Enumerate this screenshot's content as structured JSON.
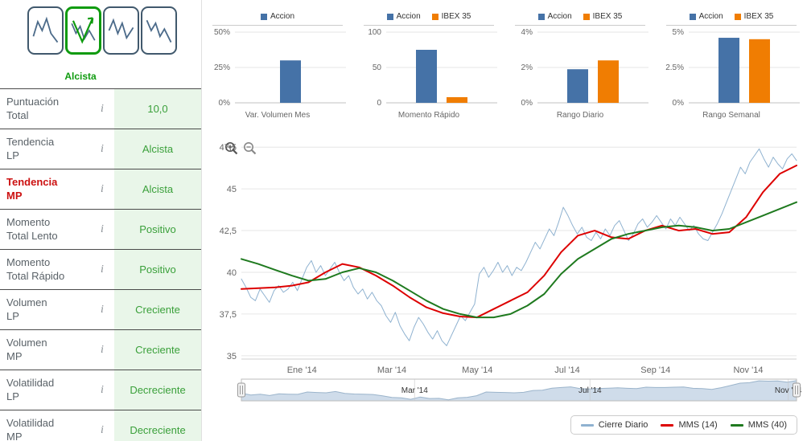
{
  "colors": {
    "accion": "#4572a7",
    "ibex": "#f07d02",
    "price": "#8fb2d0",
    "mms14": "#dd0000",
    "mms40": "#1f7a1f",
    "positive_text": "#3aa03a",
    "positive_bg": "#e9f6e9",
    "alert_red": "#cc1111",
    "grid": "#e6e6e6",
    "nav_fill": "#cfdcea",
    "nav_line": "#9bb4cb"
  },
  "icons": {
    "info": "italic-i",
    "zoom_in": "magnifier-plus",
    "zoom_out": "magnifier-minus",
    "pattern_thumbnails": [
      "sparkline-trend-1",
      "sparkline-bullish-arrow",
      "sparkline-trend-3",
      "sparkline-trend-4"
    ]
  },
  "sidebar": {
    "selected_pattern_label": "Alcista",
    "info_glyph": "i",
    "rows": [
      {
        "lines": [
          "Puntuación",
          "Total"
        ],
        "value": "10,0",
        "alert": false
      },
      {
        "lines": [
          "Tendencia",
          "LP"
        ],
        "value": "Alcista",
        "alert": false
      },
      {
        "lines": [
          "Tendencia",
          "MP"
        ],
        "value": "Alcista",
        "alert": true
      },
      {
        "lines": [
          "Momento",
          "Total Lento"
        ],
        "value": "Positivo",
        "alert": false
      },
      {
        "lines": [
          "Momento",
          "Total Rápido"
        ],
        "value": "Positivo",
        "alert": false
      },
      {
        "lines": [
          "Volumen",
          "LP"
        ],
        "value": "Creciente",
        "alert": false
      },
      {
        "lines": [
          "Volumen",
          "MP"
        ],
        "value": "Creciente",
        "alert": false
      },
      {
        "lines": [
          "Volatilidad",
          "LP"
        ],
        "value": "Decreciente",
        "alert": false
      },
      {
        "lines": [
          "Volatilidad",
          "MP"
        ],
        "value": "Decreciente",
        "alert": false
      }
    ]
  },
  "legend": {
    "items": [
      {
        "label": "Cierre Diario",
        "color_key": "price"
      },
      {
        "label": "MMS (14)",
        "color_key": "mms14"
      },
      {
        "label": "MMS (40)",
        "color_key": "mms40"
      }
    ]
  },
  "chart_data": [
    {
      "type": "bar",
      "categories": [
        "Var. Volumen Mes"
      ],
      "ymax": 50,
      "yticks": [
        {
          "v": 50,
          "label": "50%"
        },
        {
          "v": 25,
          "label": "25%"
        },
        {
          "v": 0,
          "label": "0%"
        }
      ],
      "series": [
        {
          "name": "Accion",
          "color_key": "accion",
          "values": [
            30
          ]
        }
      ]
    },
    {
      "type": "bar",
      "categories": [
        "Momento Rápido"
      ],
      "ymax": 100,
      "yticks": [
        {
          "v": 100,
          "label": "100"
        },
        {
          "v": 50,
          "label": "50"
        },
        {
          "v": 0,
          "label": "0"
        }
      ],
      "series": [
        {
          "name": "Accion",
          "color_key": "accion",
          "values": [
            75
          ]
        },
        {
          "name": "IBEX 35",
          "color_key": "ibex",
          "values": [
            8
          ]
        }
      ]
    },
    {
      "type": "bar",
      "categories": [
        "Rango Diario"
      ],
      "ymax": 4,
      "yticks": [
        {
          "v": 4,
          "label": "4%"
        },
        {
          "v": 2,
          "label": "2%"
        },
        {
          "v": 0,
          "label": "0%"
        }
      ],
      "series": [
        {
          "name": "Accion",
          "color_key": "accion",
          "values": [
            1.9
          ]
        },
        {
          "name": "IBEX 35",
          "color_key": "ibex",
          "values": [
            2.4
          ]
        }
      ]
    },
    {
      "type": "bar",
      "categories": [
        "Rango Semanal"
      ],
      "ymax": 5,
      "yticks": [
        {
          "v": 5,
          "label": "5%"
        },
        {
          "v": 2.5,
          "label": "2.5%"
        },
        {
          "v": 0,
          "label": "0%"
        }
      ],
      "series": [
        {
          "name": "Accion",
          "color_key": "accion",
          "values": [
            4.6
          ]
        },
        {
          "name": "IBEX 35",
          "color_key": "ibex",
          "values": [
            4.5
          ]
        }
      ]
    },
    {
      "type": "line",
      "title": "",
      "ylim": [
        34.8,
        47.75
      ],
      "yticks": [
        {
          "v": 47.5,
          "label": "47,5"
        },
        {
          "v": 45,
          "label": "45"
        },
        {
          "v": 42.5,
          "label": "42,5"
        },
        {
          "v": 40,
          "label": "40"
        },
        {
          "v": 37.5,
          "label": "37,5"
        },
        {
          "v": 35,
          "label": "35"
        }
      ],
      "x_labels": [
        {
          "pos": 0.109,
          "label": "Ene '14"
        },
        {
          "pos": 0.271,
          "label": "Mar '14"
        },
        {
          "pos": 0.425,
          "label": "May '14"
        },
        {
          "pos": 0.587,
          "label": "Jul '14"
        },
        {
          "pos": 0.746,
          "label": "Sep '14"
        },
        {
          "pos": 0.913,
          "label": "Nov '14"
        }
      ],
      "series": [
        {
          "name": "Cierre Diario",
          "color_key": "price",
          "width": 1,
          "values": [
            39.6,
            39.1,
            38.5,
            38.3,
            39.0,
            38.6,
            38.2,
            38.9,
            39.2,
            38.8,
            39.0,
            39.4,
            38.9,
            39.6,
            40.3,
            40.7,
            40.0,
            40.4,
            39.8,
            40.2,
            40.6,
            40.0,
            39.5,
            39.8,
            39.1,
            38.7,
            39.0,
            38.4,
            38.8,
            38.3,
            38.0,
            37.4,
            37.0,
            37.6,
            36.8,
            36.3,
            35.9,
            36.7,
            37.3,
            36.9,
            36.4,
            36.0,
            36.5,
            35.9,
            35.6,
            36.2,
            36.8,
            37.4,
            37.1,
            37.6,
            38.1,
            39.9,
            40.3,
            39.7,
            40.1,
            40.6,
            40.0,
            40.4,
            39.8,
            40.3,
            40.1,
            40.6,
            41.2,
            41.8,
            41.4,
            42.0,
            42.6,
            42.2,
            43.0,
            43.9,
            43.4,
            42.8,
            42.3,
            42.7,
            42.1,
            41.9,
            42.4,
            42.0,
            42.6,
            42.2,
            42.8,
            43.1,
            42.5,
            41.9,
            42.3,
            42.9,
            43.2,
            42.7,
            43.0,
            43.4,
            43.0,
            42.6,
            43.2,
            42.8,
            43.3,
            42.9,
            42.5,
            42.8,
            42.3,
            42.0,
            41.9,
            42.4,
            42.9,
            43.5,
            44.2,
            44.9,
            45.6,
            46.3,
            45.9,
            46.6,
            47.0,
            47.4,
            46.8,
            46.3,
            46.9,
            46.5,
            46.2,
            46.8,
            47.1,
            46.7
          ]
        },
        {
          "name": "MMS (14)",
          "color_key": "mms14",
          "width": 2,
          "values": [
            39.0,
            39.05,
            39.1,
            39.2,
            39.4,
            40.0,
            40.5,
            40.3,
            39.8,
            39.2,
            38.5,
            37.9,
            37.55,
            37.35,
            37.3,
            37.8,
            38.3,
            38.8,
            39.8,
            41.2,
            42.2,
            42.5,
            42.1,
            42.0,
            42.5,
            42.8,
            42.5,
            42.6,
            42.3,
            42.4,
            43.3,
            44.8,
            45.9,
            46.4
          ]
        },
        {
          "name": "MMS (40)",
          "color_key": "mms40",
          "width": 2,
          "values": [
            40.8,
            40.5,
            40.15,
            39.8,
            39.5,
            39.6,
            40.0,
            40.25,
            40.0,
            39.5,
            38.9,
            38.3,
            37.8,
            37.5,
            37.3,
            37.3,
            37.5,
            38.0,
            38.7,
            39.9,
            40.8,
            41.4,
            42.0,
            42.3,
            42.5,
            42.7,
            42.8,
            42.7,
            42.5,
            42.6,
            43.0,
            43.4,
            43.8,
            44.2
          ]
        }
      ]
    },
    {
      "type": "area",
      "role": "navigator",
      "ylim": [
        35,
        48
      ],
      "labels": [
        {
          "pos": 0.312,
          "label": "Mar '14"
        },
        {
          "pos": 0.628,
          "label": "Jul '14"
        },
        {
          "pos": 0.985,
          "label": "Nov '14"
        }
      ],
      "values": [
        39.6,
        38.5,
        39.0,
        38.2,
        39.2,
        39.0,
        38.9,
        40.3,
        40.0,
        39.8,
        40.6,
        39.5,
        39.1,
        39.0,
        38.8,
        38.0,
        37.0,
        36.8,
        35.9,
        37.3,
        36.4,
        36.5,
        35.6,
        36.8,
        37.1,
        38.1,
        40.3,
        40.1,
        40.0,
        39.8,
        40.1,
        41.2,
        41.4,
        42.6,
        43.0,
        43.4,
        42.3,
        42.1,
        42.4,
        42.6,
        42.8,
        42.5,
        42.3,
        43.2,
        43.0,
        43.0,
        43.2,
        43.3,
        42.5,
        42.3,
        41.9,
        42.9,
        44.2,
        45.6,
        45.9,
        47.0,
        46.8,
        46.9,
        46.2,
        47.1
      ]
    }
  ]
}
